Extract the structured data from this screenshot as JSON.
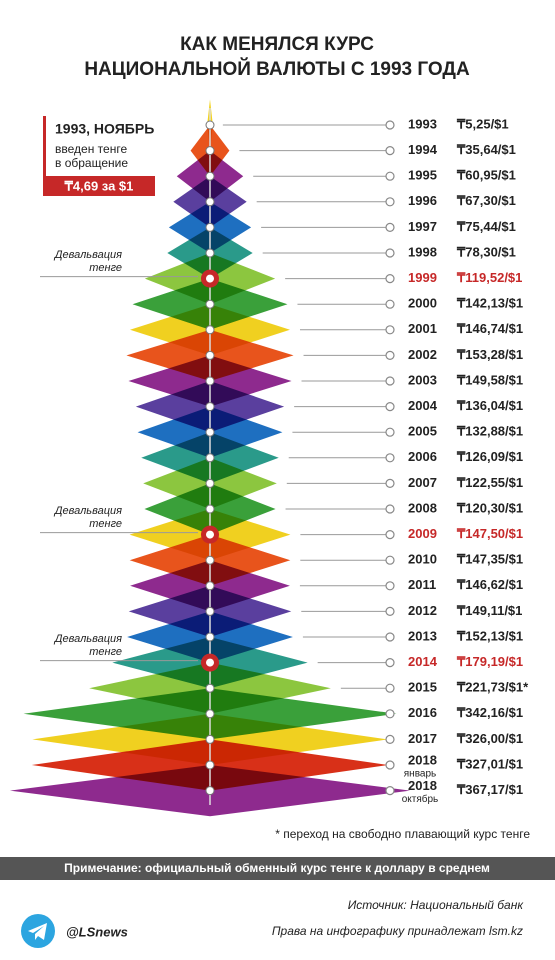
{
  "chart_data": {
    "type": "diamond",
    "title": [
      "КАК МЕНЯЛСЯ КУРС",
      "НАЦИОНАЛЬНОЙ ВАЛЮТЫ С 1993 ГОДА"
    ],
    "categories": [
      "1993",
      "1994",
      "1995",
      "1996",
      "1997",
      "1998",
      "1999",
      "2000",
      "2001",
      "2002",
      "2003",
      "2004",
      "2005",
      "2006",
      "2007",
      "2008",
      "2009",
      "2010",
      "2011",
      "2012",
      "2013",
      "2014",
      "2015",
      "2016",
      "2017",
      "2018",
      "2018"
    ],
    "category_notes": [
      null,
      null,
      null,
      null,
      null,
      null,
      null,
      null,
      null,
      null,
      null,
      null,
      null,
      null,
      null,
      null,
      null,
      null,
      null,
      null,
      null,
      null,
      null,
      null,
      null,
      "январь",
      "октябрь"
    ],
    "values": [
      5.25,
      35.64,
      60.95,
      67.3,
      75.44,
      78.3,
      119.52,
      142.13,
      146.74,
      153.28,
      149.58,
      136.04,
      132.88,
      126.09,
      122.55,
      120.3,
      147.5,
      147.35,
      146.62,
      149.11,
      152.13,
      179.19,
      221.73,
      342.16,
      326.0,
      327.01,
      367.17
    ],
    "value_labels": [
      "₸5,25/$1",
      "₸35,64/$1",
      "₸60,95/$1",
      "₸67,30/$1",
      "₸75,44/$1",
      "₸78,30/$1",
      "₸119,52/$1",
      "₸142,13/$1",
      "₸146,74/$1",
      "₸153,28/$1",
      "₸149,58/$1",
      "₸136,04/$1",
      "₸132,88/$1",
      "₸126,09/$1",
      "₸122,55/$1",
      "₸120,30/$1",
      "₸147,50/$1",
      "₸147,35/$1",
      "₸146,62/$1",
      "₸149,11/$1",
      "₸152,13/$1",
      "₸179,19/$1",
      "₸221,73/$1*",
      "₸342,16/$1",
      "₸326,00/$1",
      "₸327,01/$1",
      "₸367,17/$1"
    ],
    "colors": [
      "#f2d21b",
      "#e8541c",
      "#8e2a8e",
      "#5a3f9e",
      "#1e6fc0",
      "#2a9a8a",
      "#8cc63f",
      "#3aa03a",
      "#f0d020",
      "#e8541c",
      "#8e2a8e",
      "#5a3f9e",
      "#1e6fc0",
      "#2a9a8a",
      "#8cc63f",
      "#3aa03a",
      "#f0d020",
      "#e8541c",
      "#8e2a8e",
      "#5a3f9e",
      "#1e6fc0",
      "#2a9a8a",
      "#8cc63f",
      "#3aa03a",
      "#f0d020",
      "#d83018",
      "#8e2a8e"
    ],
    "highlighted": [
      false,
      false,
      false,
      false,
      false,
      false,
      true,
      false,
      false,
      false,
      false,
      false,
      false,
      false,
      false,
      false,
      true,
      false,
      false,
      false,
      false,
      true,
      false,
      false,
      false,
      false,
      false
    ],
    "highlight_color": "#c62828",
    "annotations": [
      "Девальвация тенге",
      "Девальвация тенге",
      "Девальвация тенге"
    ],
    "intro": {
      "heading": "1993, НОЯБРЬ",
      "lines": [
        "введен тенге",
        "в обращение"
      ],
      "rate": "₸4,69 за $1"
    },
    "footnote": "* переход на свободно плавающий курс тенге",
    "note": "Примечание: официальный обменный курс тенге к доллару в среднем",
    "handle": "@LSnews",
    "source": "Источник: Национальный банк",
    "copyright": "Права на инфографику принадлежат lsm.kz"
  }
}
